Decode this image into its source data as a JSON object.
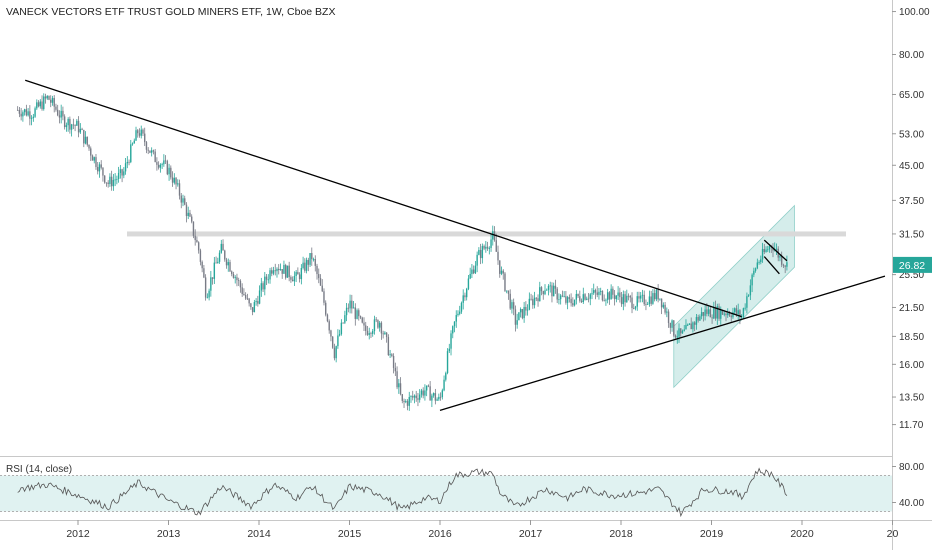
{
  "title": "VANECK VECTORS ETF TRUST GOLD MINERS ETF, 1W, Cboe BZX",
  "rsi_label": "RSI (14, close)",
  "colors": {
    "up": "#26a69a",
    "down": "#787b86",
    "trendline": "#000000",
    "channel": "#b2dfdb",
    "resistance": "#d9d9d9",
    "rsi_line": "#555555",
    "rsi_band": "#e0f2f1",
    "price_badge": "#26a69a"
  },
  "chart_data": {
    "type": "candlestick",
    "y_scale": "log",
    "ylim": [
      10.8,
      104
    ],
    "price_ticks": [
      "100.00",
      "80.00",
      "65.00",
      "53.00",
      "45.00",
      "37.50",
      "31.50",
      "25.50",
      "21.50",
      "18.50",
      "16.00",
      "13.50",
      "11.70"
    ],
    "x_ticks": [
      "2012",
      "2013",
      "2014",
      "2015",
      "2016",
      "2017",
      "2018",
      "2019",
      "2020",
      "20"
    ],
    "last_price": "26.82",
    "close_path": [
      [
        "2011-05",
        60
      ],
      [
        "2011-07",
        59
      ],
      [
        "2011-09",
        64
      ],
      [
        "2011-11",
        57
      ],
      [
        "2012-01",
        55
      ],
      [
        "2012-03",
        47
      ],
      [
        "2012-05",
        41
      ],
      [
        "2012-07",
        43
      ],
      [
        "2012-09",
        54
      ],
      [
        "2012-11",
        47
      ],
      [
        "2013-01",
        44
      ],
      [
        "2013-03",
        37
      ],
      [
        "2013-05",
        29
      ],
      [
        "2013-06",
        23
      ],
      [
        "2013-08",
        29
      ],
      [
        "2013-10",
        25
      ],
      [
        "2013-12",
        21
      ],
      [
        "2014-03",
        27
      ],
      [
        "2014-06",
        25
      ],
      [
        "2014-08",
        28
      ],
      [
        "2014-11",
        17
      ],
      [
        "2015-01",
        22
      ],
      [
        "2015-03",
        19
      ],
      [
        "2015-05",
        20
      ],
      [
        "2015-08",
        13
      ],
      [
        "2015-11",
        14
      ],
      [
        "2016-01",
        13.2
      ],
      [
        "2016-03",
        20
      ],
      [
        "2016-06",
        28
      ],
      [
        "2016-08",
        31
      ],
      [
        "2016-09",
        26
      ],
      [
        "2016-11",
        20
      ],
      [
        "2016-12",
        21
      ],
      [
        "2017-03",
        24
      ],
      [
        "2017-06",
        22
      ],
      [
        "2017-08",
        23
      ],
      [
        "2017-12",
        23
      ],
      [
        "2018-03",
        22
      ],
      [
        "2018-06",
        23
      ],
      [
        "2018-08",
        19
      ],
      [
        "2018-09",
        18.5
      ],
      [
        "2018-12",
        21
      ],
      [
        "2019-04",
        21
      ],
      [
        "2019-05",
        20.5
      ],
      [
        "2019-07",
        27
      ],
      [
        "2019-09",
        30
      ],
      [
        "2019-10",
        28
      ],
      [
        "2019-11",
        26.8
      ]
    ],
    "trendlines": [
      {
        "name": "descending",
        "from": [
          "2011-06",
          70
        ],
        "to": [
          "2019-05",
          20.5
        ]
      },
      {
        "name": "ascending",
        "from": [
          "2016-01",
          12.6
        ],
        "to": [
          "2020-12",
          25.3
        ]
      },
      {
        "name": "flag-upper",
        "from": [
          "2019-08",
          30.5
        ],
        "to": [
          "2019-11",
          27.4
        ]
      },
      {
        "name": "flag-lower",
        "from": [
          "2019-08",
          28.0
        ],
        "to": [
          "2019-10",
          25.6
        ]
      }
    ],
    "resistance_level": 31.5,
    "channel": {
      "start": "2018-08",
      "end": "2019-12",
      "lower": [
        14.2,
        26.5
      ],
      "upper": [
        19.5,
        36.5
      ]
    },
    "rsi": {
      "ylim": [
        25,
        85
      ],
      "ticks": [
        "80.00",
        "40.00"
      ],
      "band": [
        30,
        70
      ],
      "path": [
        [
          "2011-05",
          55
        ],
        [
          "2011-09",
          60
        ],
        [
          "2012-01",
          48
        ],
        [
          "2012-05",
          35
        ],
        [
          "2012-09",
          62
        ],
        [
          "2013-01",
          42
        ],
        [
          "2013-05",
          28
        ],
        [
          "2013-08",
          58
        ],
        [
          "2013-12",
          36
        ],
        [
          "2014-03",
          60
        ],
        [
          "2014-06",
          45
        ],
        [
          "2014-08",
          58
        ],
        [
          "2014-11",
          32
        ],
        [
          "2015-01",
          58
        ],
        [
          "2015-05",
          50
        ],
        [
          "2015-08",
          32
        ],
        [
          "2015-11",
          45
        ],
        [
          "2016-01",
          42
        ],
        [
          "2016-03",
          70
        ],
        [
          "2016-06",
          74
        ],
        [
          "2016-08",
          72
        ],
        [
          "2016-09",
          50
        ],
        [
          "2016-11",
          35
        ],
        [
          "2017-03",
          55
        ],
        [
          "2017-06",
          45
        ],
        [
          "2017-08",
          55
        ],
        [
          "2017-12",
          48
        ],
        [
          "2018-03",
          50
        ],
        [
          "2018-06",
          55
        ],
        [
          "2018-09",
          28
        ],
        [
          "2018-12",
          55
        ],
        [
          "2019-04",
          52
        ],
        [
          "2019-05",
          45
        ],
        [
          "2019-07",
          75
        ],
        [
          "2019-09",
          72
        ],
        [
          "2019-11",
          50
        ]
      ]
    }
  }
}
